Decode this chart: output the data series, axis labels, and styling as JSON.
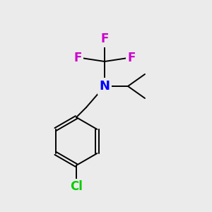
{
  "background_color": "#ebebeb",
  "bond_color": "#000000",
  "N_color": "#0000ff",
  "F_color": "#cc00cc",
  "Cl_color": "#00cc00",
  "N_label": "N",
  "F_label": "F",
  "Cl_label": "Cl",
  "font_size_N": 13,
  "font_size_F": 12,
  "font_size_Cl": 12,
  "lw": 1.4
}
